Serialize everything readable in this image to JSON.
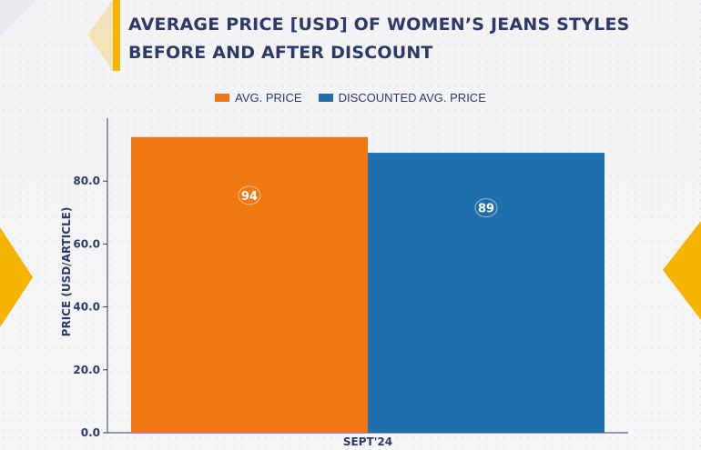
{
  "title_line1": "AVERAGE PRICE [USD] OF WOMEN’S JEANS STYLES",
  "title_line2": "BEFORE AND AFTER DISCOUNT",
  "colors": {
    "accent": "#f5b400",
    "title": "#2b3a67",
    "avg": "#f07810",
    "discounted": "#1f6fad"
  },
  "legend": [
    "AVG. PRICE",
    "DISCOUNTED AVG. PRICE"
  ],
  "chart_data": {
    "type": "bar",
    "categories": [
      "SEPT'24"
    ],
    "series": [
      {
        "name": "AVG. PRICE",
        "values": [
          94
        ],
        "color": "#f07810"
      },
      {
        "name": "DISCOUNTED AVG. PRICE",
        "values": [
          89
        ],
        "color": "#1f6fad"
      }
    ],
    "ylabel": "PRICE (USD/ARTICLE)",
    "xlabel": "",
    "yticks": [
      "0.0",
      "20.0",
      "40.0",
      "60.0",
      "80.0"
    ],
    "ylim": [
      0,
      100
    ],
    "data_labels": [
      "94",
      "89"
    ],
    "grid": false,
    "legend_position": "top"
  }
}
